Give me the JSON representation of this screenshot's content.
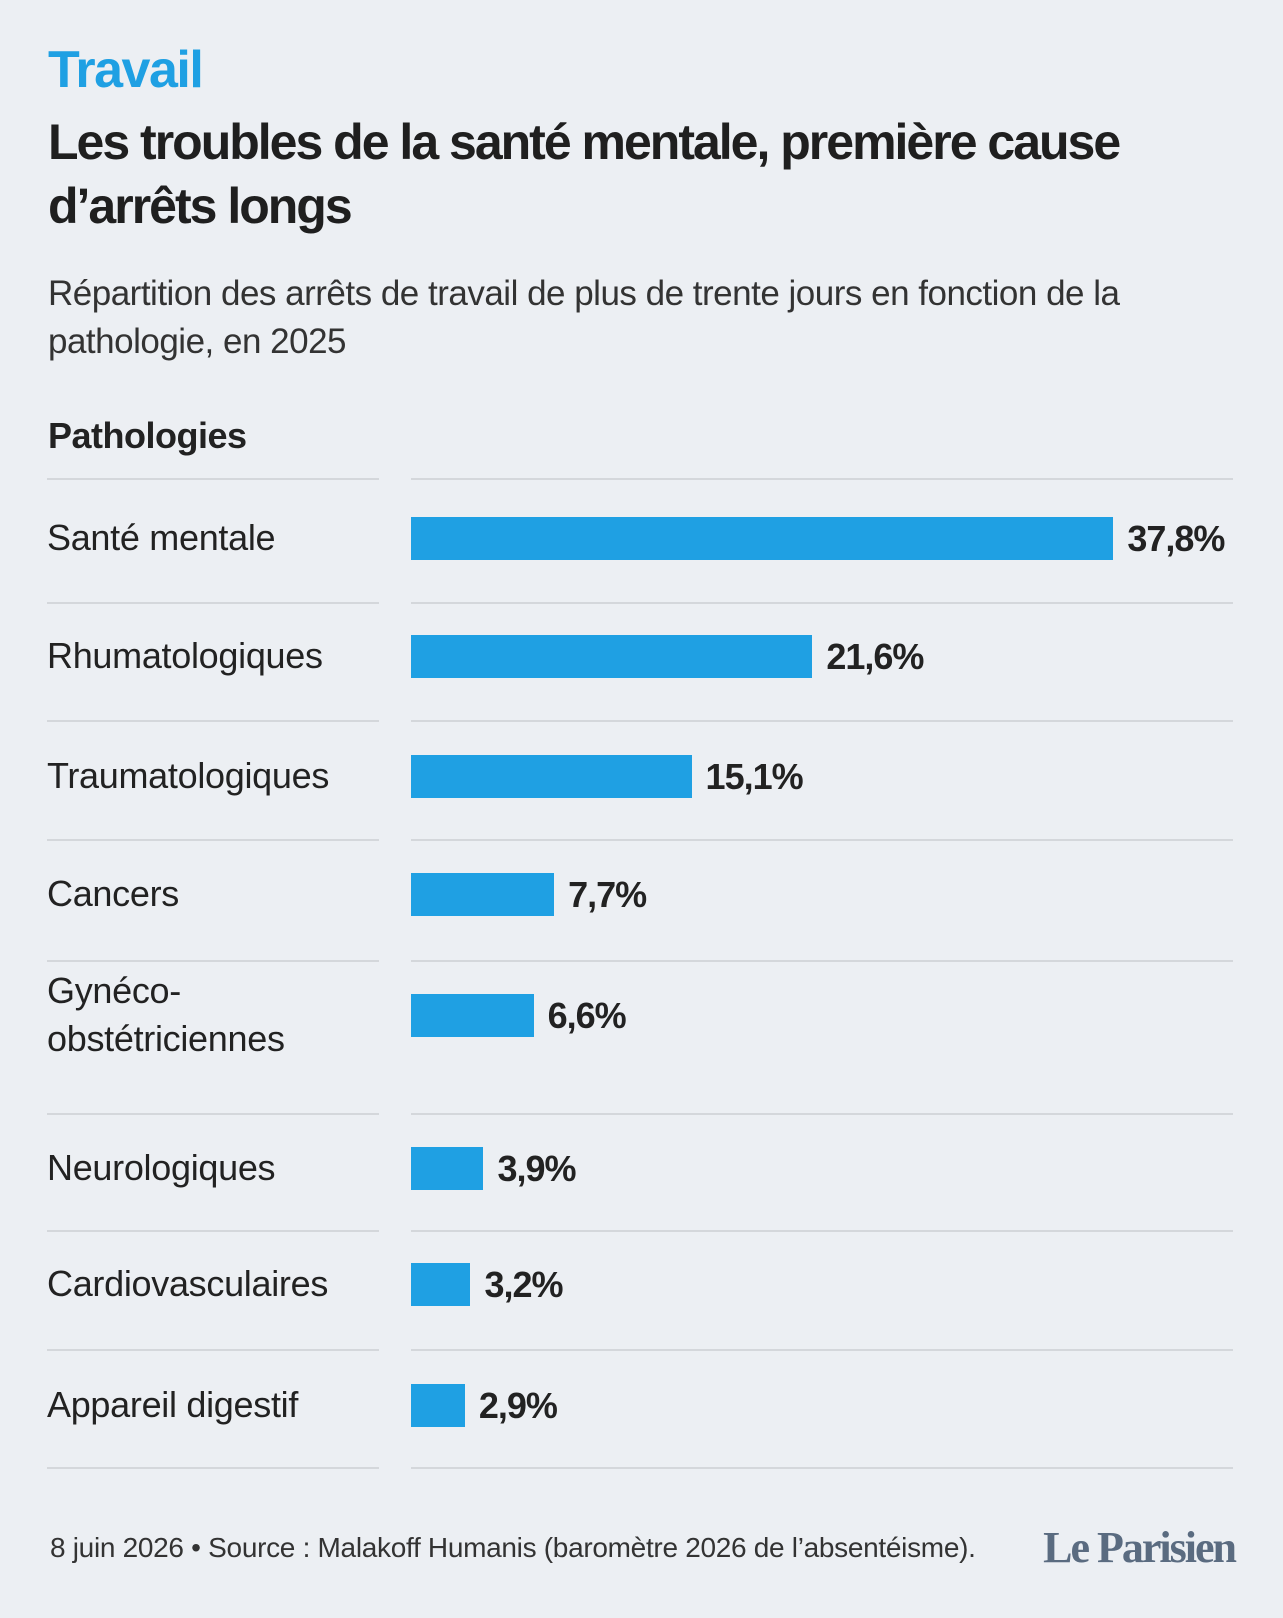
{
  "chart_data": {
    "type": "bar",
    "kicker": "Travail",
    "title": "Les troubles de la santé mentale, première cause d’arrêts longs",
    "subtitle": "Répartition des arrêts de travail de plus de trente jours en fonction de la pathologie, en 2025",
    "category_header": "Pathologies",
    "categories": [
      "Santé mentale",
      "Rhumatologiques",
      "Traumatologiques",
      "Cancers",
      "Gynéco-obstétriciennes",
      "Neurologiques",
      "Cardiovasculaires",
      "Appareil digestif"
    ],
    "values": [
      37.8,
      21.6,
      15.1,
      7.7,
      6.6,
      3.9,
      3.2,
      2.9
    ],
    "value_labels": [
      "37,8%",
      "21,6%",
      "15,1%",
      "7,7%",
      "6,6%",
      "3,9%",
      "3,2%",
      "2,9%"
    ],
    "color": "#1fa0e3",
    "footer": "8 juin 2026 • Source : Malakoff Humanis (baromètre 2026 de l’absentéisme).",
    "logo": "Le Parisien"
  }
}
